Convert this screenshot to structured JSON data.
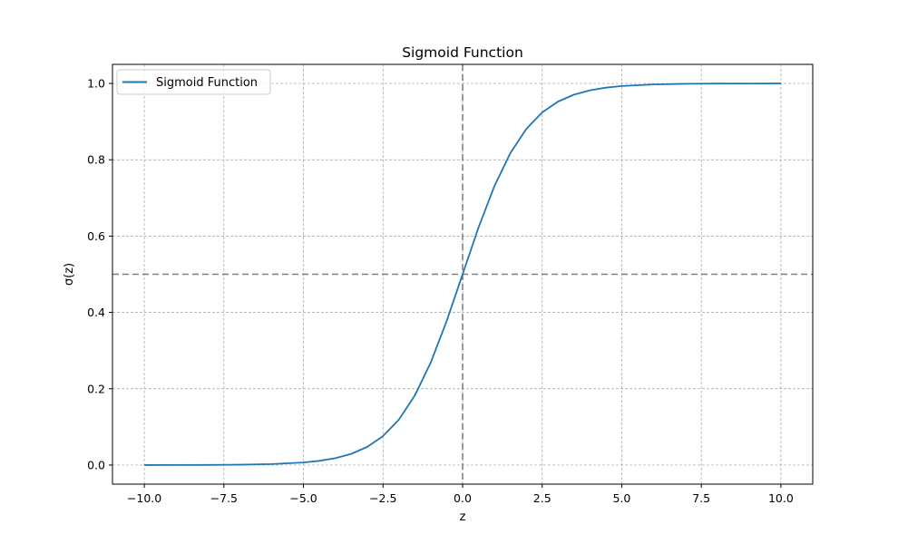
{
  "chart_data": {
    "type": "line",
    "title": "Sigmoid Function",
    "xlabel": "z",
    "ylabel": "σ(z)",
    "xlim": [
      -11.0,
      11.0
    ],
    "ylim": [
      -0.05,
      1.05
    ],
    "x_ticks": [
      -10.0,
      -7.5,
      -5.0,
      -2.5,
      0.0,
      2.5,
      5.0,
      7.5,
      10.0
    ],
    "x_tick_labels": [
      "−10.0",
      "−7.5",
      "−5.0",
      "−2.5",
      "0.0",
      "2.5",
      "5.0",
      "7.5",
      "10.0"
    ],
    "y_ticks": [
      0.0,
      0.2,
      0.4,
      0.6,
      0.8,
      1.0
    ],
    "y_tick_labels": [
      "0.0",
      "0.2",
      "0.4",
      "0.6",
      "0.8",
      "1.0"
    ],
    "grid": true,
    "legend_position": "top-left",
    "series": [
      {
        "name": "Sigmoid Function",
        "color": "#1f77b4",
        "x": [
          -10.0,
          -9.0,
          -8.0,
          -7.0,
          -6.0,
          -5.0,
          -4.5,
          -4.0,
          -3.5,
          -3.0,
          -2.5,
          -2.0,
          -1.5,
          -1.0,
          -0.5,
          0.0,
          0.5,
          1.0,
          1.5,
          2.0,
          2.5,
          3.0,
          3.5,
          4.0,
          4.5,
          5.0,
          6.0,
          7.0,
          8.0,
          9.0,
          10.0
        ],
        "y": [
          0.0,
          0.0001,
          0.0003,
          0.0009,
          0.0025,
          0.0067,
          0.011,
          0.018,
          0.0293,
          0.0474,
          0.0759,
          0.1192,
          0.1824,
          0.2689,
          0.3775,
          0.5,
          0.6225,
          0.7311,
          0.8176,
          0.8808,
          0.9241,
          0.9526,
          0.9707,
          0.982,
          0.989,
          0.9933,
          0.9975,
          0.9991,
          0.9997,
          0.9999,
          1.0
        ]
      }
    ],
    "reference_lines": [
      {
        "orientation": "horizontal",
        "value": 0.5,
        "color": "#808080",
        "style": "dashed"
      },
      {
        "orientation": "vertical",
        "value": 0.0,
        "color": "#808080",
        "style": "dashed"
      }
    ],
    "colors": {
      "grid": "#a0a0a0",
      "axes": "#000000",
      "background": "#ffffff"
    }
  }
}
